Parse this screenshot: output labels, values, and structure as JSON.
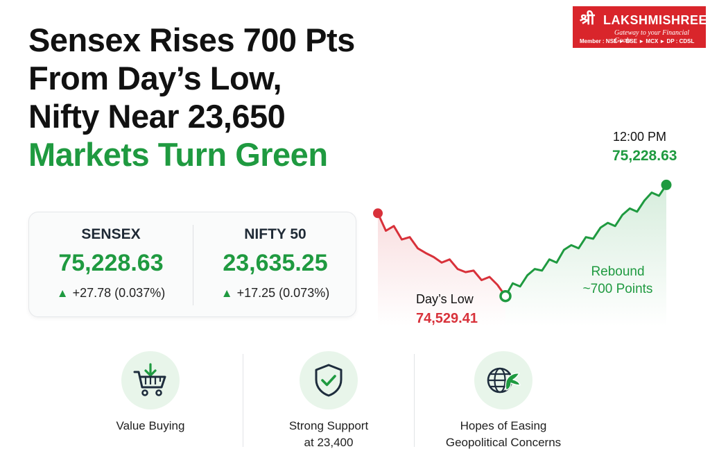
{
  "headline": {
    "line1": "Sensex Rises 700 Pts",
    "line2": "From Day’s Low,",
    "line3": "Nifty Near 23,650",
    "line4": "Markets Turn Green"
  },
  "logo": {
    "mark": "श्री",
    "brand": "LAKSHMISHREE",
    "tagline": "Gateway to your Financial Goals",
    "member": "Member : NSE ► BSE ► MCX ► DP : CDSL"
  },
  "indices": [
    {
      "name": "SENSEX",
      "value": "75,228.63",
      "change": "+27.78 (0.037%)"
    },
    {
      "name": "NIFTY 50",
      "value": "23,635.25",
      "change": "+17.25 (0.073%)"
    }
  ],
  "chart_data": {
    "type": "line",
    "title": "",
    "xlabel": "",
    "ylabel": "",
    "start_value": 75050,
    "low_value": 74529.41,
    "peak_value": 75228.63,
    "decline": [
      75050,
      74940,
      74970,
      74885,
      74900,
      74830,
      74800,
      74775,
      74740,
      74760,
      74700,
      74680,
      74690,
      74630,
      74650,
      74600,
      74529.41
    ],
    "rebound": [
      74529.41,
      74610,
      74590,
      74660,
      74700,
      74690,
      74760,
      74740,
      74820,
      74850,
      74830,
      74900,
      74890,
      74960,
      74990,
      74970,
      75040,
      75080,
      75060,
      75130,
      75180,
      75160,
      75228.63
    ],
    "ylim": [
      74480,
      75300
    ],
    "colors": {
      "decline": "#d8313a",
      "rebound": "#1f9a40"
    },
    "annotations": {
      "time": "12:00 PM",
      "peak": "75,228.63",
      "low_label": "Day’s Low",
      "low_value": "74,529.41",
      "rebound_line1": "Rebound",
      "rebound_line2": "~700 Points"
    }
  },
  "factors": [
    {
      "icon": "shopping-cart-download-icon",
      "line1": "Value Buying",
      "line2": ""
    },
    {
      "icon": "shield-check-icon",
      "line1": "Strong Support",
      "line2": "at 23,400"
    },
    {
      "icon": "globe-dove-icon",
      "line1": "Hopes of Easing",
      "line2": "Geopolitical Concerns"
    }
  ],
  "colors": {
    "accent_green": "#1f9a40",
    "accent_red": "#d8313a",
    "brand_red": "#d9252b"
  }
}
